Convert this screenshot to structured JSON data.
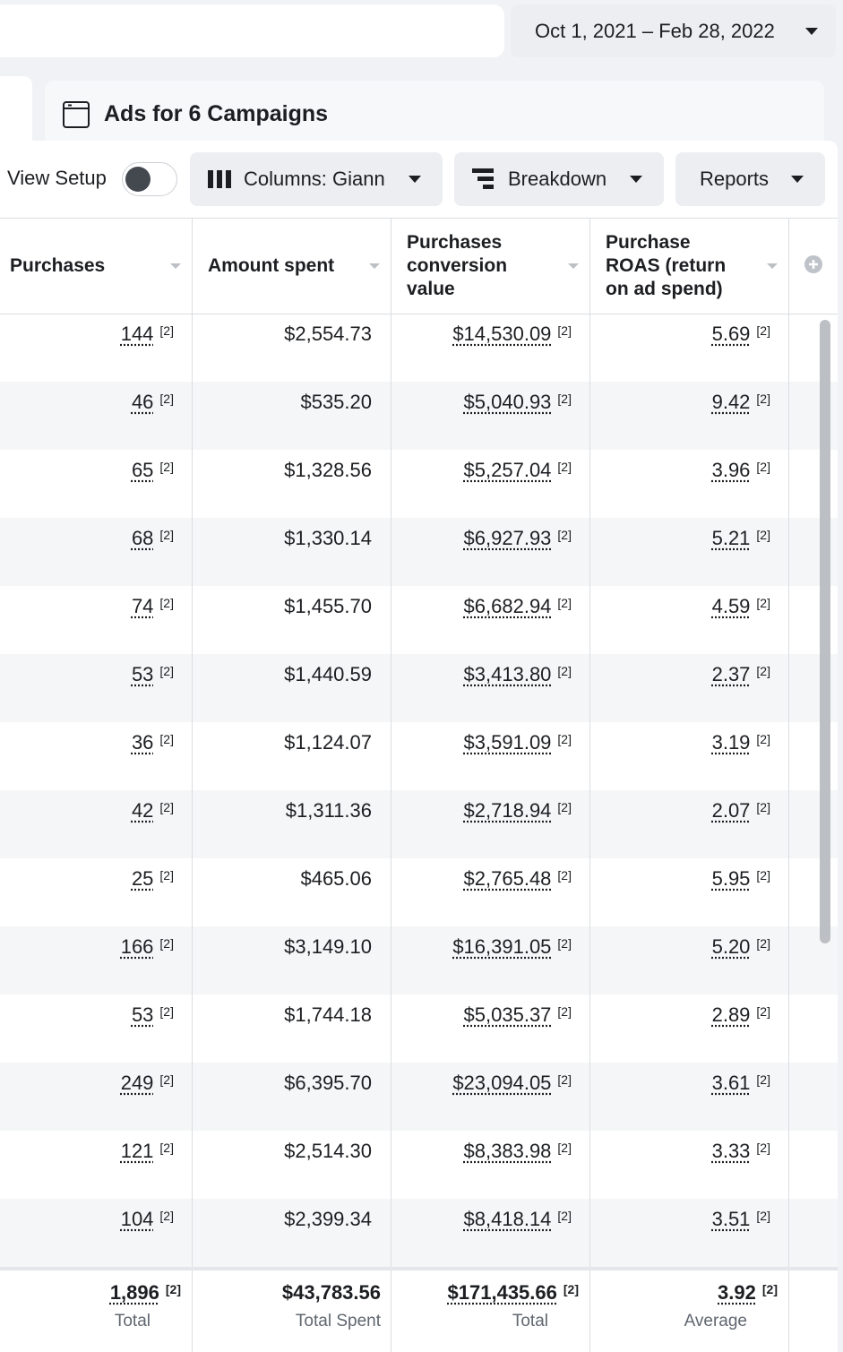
{
  "date_range": "Oct 1, 2021 – Feb 28, 2022",
  "tab": {
    "title": "Ads for 6 Campaigns"
  },
  "toolbar": {
    "view_setup": "View Setup",
    "columns": "Columns: Giann",
    "breakdown": "Breakdown",
    "reports": "Reports"
  },
  "table": {
    "note": "[2]",
    "headers": [
      "Purchases",
      "Amount spent",
      "Purchases conversion value",
      "Purchase ROAS (return on ad spend)"
    ],
    "rows": [
      [
        "144",
        "$2,554.73",
        "$14,530.09",
        "5.69"
      ],
      [
        "46",
        "$535.20",
        "$5,040.93",
        "9.42"
      ],
      [
        "65",
        "$1,328.56",
        "$5,257.04",
        "3.96"
      ],
      [
        "68",
        "$1,330.14",
        "$6,927.93",
        "5.21"
      ],
      [
        "74",
        "$1,455.70",
        "$6,682.94",
        "4.59"
      ],
      [
        "53",
        "$1,440.59",
        "$3,413.80",
        "2.37"
      ],
      [
        "36",
        "$1,124.07",
        "$3,591.09",
        "3.19"
      ],
      [
        "42",
        "$1,311.36",
        "$2,718.94",
        "2.07"
      ],
      [
        "25",
        "$465.06",
        "$2,765.48",
        "5.95"
      ],
      [
        "166",
        "$3,149.10",
        "$16,391.05",
        "5.20"
      ],
      [
        "53",
        "$1,744.18",
        "$5,035.37",
        "2.89"
      ],
      [
        "249",
        "$6,395.70",
        "$23,094.05",
        "3.61"
      ],
      [
        "121",
        "$2,514.30",
        "$8,383.98",
        "3.33"
      ],
      [
        "104",
        "$2,399.34",
        "$8,418.14",
        "3.51"
      ]
    ],
    "totals": [
      {
        "value": "1,896",
        "label": "Total"
      },
      {
        "value": "$43,783.56",
        "label": "Total Spent"
      },
      {
        "value": "$171,435.66",
        "label": "Total"
      },
      {
        "value": "3.92",
        "label": "Average"
      }
    ]
  }
}
